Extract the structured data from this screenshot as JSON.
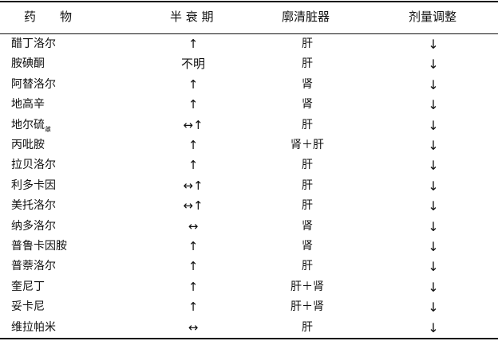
{
  "headers": [
    "药　　物",
    "半 衰 期",
    "廓清脏器",
    "剂量调整"
  ],
  "rows": [
    {
      "drug": "醋丁洛尔",
      "drug_sub": "",
      "half_life": "↑",
      "organ": "肝",
      "adjust": "↓"
    },
    {
      "drug": "胺碘酮",
      "drug_sub": "",
      "half_life": "不明",
      "organ": "肝",
      "adjust": "↓"
    },
    {
      "drug": "阿替洛尔",
      "drug_sub": "",
      "half_life": "↑",
      "organ": "肾",
      "adjust": "↓"
    },
    {
      "drug": "地高辛",
      "drug_sub": "",
      "half_life": "↑",
      "organ": "肾",
      "adjust": "↓"
    },
    {
      "drug": "地尔硫",
      "drug_sub": "䓬",
      "half_life": "↔↑",
      "organ": "肝",
      "adjust": "↓"
    },
    {
      "drug": "丙吡胺",
      "drug_sub": "",
      "half_life": "↑",
      "organ": "肾＋肝",
      "adjust": "↓"
    },
    {
      "drug": "拉贝洛尔",
      "drug_sub": "",
      "half_life": "↑",
      "organ": "肝",
      "adjust": "↓"
    },
    {
      "drug": "利多卡因",
      "drug_sub": "",
      "half_life": "↔↑",
      "organ": "肝",
      "adjust": "↓"
    },
    {
      "drug": "美托洛尔",
      "drug_sub": "",
      "half_life": "↔↑",
      "organ": "肝",
      "adjust": "↓"
    },
    {
      "drug": "纳多洛尔",
      "drug_sub": "",
      "half_life": "↔",
      "organ": "肾",
      "adjust": "↓"
    },
    {
      "drug": "普鲁卡因胺",
      "drug_sub": "",
      "half_life": "↑",
      "organ": "肾",
      "adjust": "↓"
    },
    {
      "drug": "普萘洛尔",
      "drug_sub": "",
      "half_life": "↑",
      "organ": "肝",
      "adjust": "↓"
    },
    {
      "drug": "奎尼丁",
      "drug_sub": "",
      "half_life": "↑",
      "organ": "肝＋肾",
      "adjust": "↓"
    },
    {
      "drug": "妥卡尼",
      "drug_sub": "",
      "half_life": "↑",
      "organ": "肝＋肾",
      "adjust": "↓"
    },
    {
      "drug": "维拉帕米",
      "drug_sub": "",
      "half_life": "↔",
      "organ": "肝",
      "adjust": "↓"
    }
  ]
}
